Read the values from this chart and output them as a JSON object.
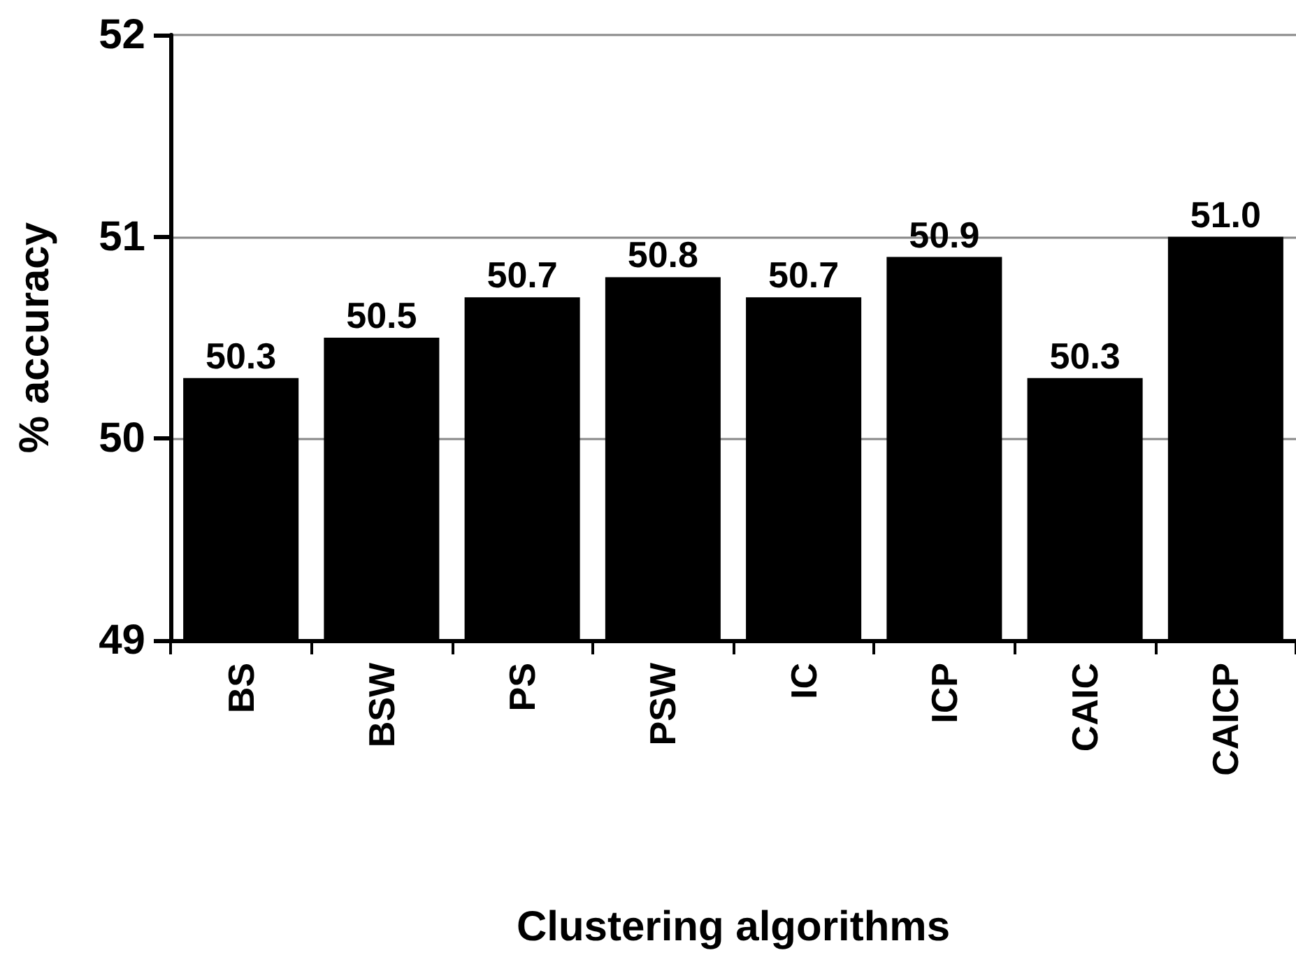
{
  "chart_data": {
    "type": "bar",
    "xlabel": "Clustering algorithms",
    "ylabel": "% accuracy",
    "categories": [
      "BS",
      "BSW",
      "PS",
      "PSW",
      "IC",
      "ICP",
      "CAIC",
      "CAICP"
    ],
    "values": [
      50.3,
      50.5,
      50.7,
      50.8,
      50.7,
      50.9,
      50.3,
      51.0
    ],
    "value_labels": [
      "50.3",
      "50.5",
      "50.7",
      "50.8",
      "50.7",
      "50.9",
      "50.3",
      "51.0"
    ],
    "color": "#000000",
    "ylim": [
      49,
      52
    ],
    "yticks": [
      49,
      50,
      51,
      52
    ],
    "grid": "y"
  }
}
